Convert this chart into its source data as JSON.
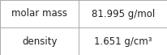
{
  "rows": [
    {
      "label": "molar mass",
      "value": "81.995 g/mol"
    },
    {
      "label": "density",
      "value": "1.651 g/cm³"
    }
  ],
  "col_split": 0.47,
  "background_color": "#ffffff",
  "border_color": "#aaaaaa",
  "text_color": "#222222",
  "font_size": 8.5,
  "fig_width": 2.07,
  "fig_height": 0.68,
  "dpi": 100
}
